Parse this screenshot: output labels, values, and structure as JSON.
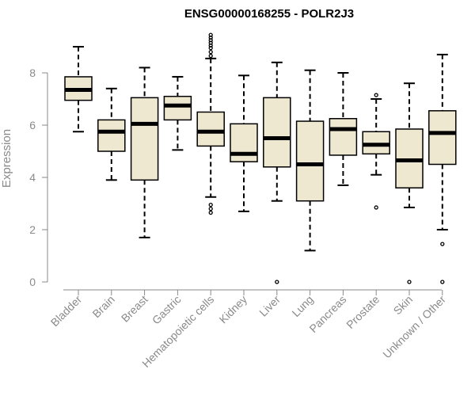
{
  "chart_data": {
    "type": "boxplot",
    "title": "ENSG00000168255 - POLR2J3",
    "xlabel": "",
    "ylabel": "Expression",
    "ylim": [
      0,
      9.5
    ],
    "yticks": [
      0,
      2,
      4,
      6,
      8
    ],
    "box_fill": "#efe8d0",
    "median_color": "#000000",
    "categories": [
      "Bladder",
      "Brain",
      "Breast",
      "Gastric",
      "Hematopoietic cells",
      "Kidney",
      "Liver",
      "Lung",
      "Pancreas",
      "Prostate",
      "Skin",
      "Unknown / Other"
    ],
    "boxes": [
      {
        "name": "Bladder",
        "min": 5.75,
        "q1": 6.95,
        "median": 7.35,
        "q3": 7.85,
        "max": 9.0,
        "outliers": []
      },
      {
        "name": "Brain",
        "min": 3.9,
        "q1": 5.0,
        "median": 5.75,
        "q3": 6.2,
        "max": 7.4,
        "outliers": []
      },
      {
        "name": "Breast",
        "min": 1.7,
        "q1": 3.9,
        "median": 6.05,
        "q3": 7.05,
        "max": 8.2,
        "outliers": []
      },
      {
        "name": "Gastric",
        "min": 5.05,
        "q1": 6.2,
        "median": 6.75,
        "q3": 7.1,
        "max": 7.85,
        "outliers": []
      },
      {
        "name": "Hematopoietic cells",
        "min": 3.25,
        "q1": 5.2,
        "median": 5.75,
        "q3": 6.5,
        "max": 8.55,
        "outliers": [
          8.65,
          8.8,
          8.95,
          9.05,
          9.15,
          9.25,
          9.35,
          9.45,
          2.95,
          2.8,
          2.65
        ]
      },
      {
        "name": "Kidney",
        "min": 2.7,
        "q1": 4.6,
        "median": 4.9,
        "q3": 6.05,
        "max": 7.9,
        "outliers": []
      },
      {
        "name": "Liver",
        "min": 3.1,
        "q1": 4.4,
        "median": 5.5,
        "q3": 7.05,
        "max": 8.4,
        "outliers": [
          0.0
        ]
      },
      {
        "name": "Lung",
        "min": 1.2,
        "q1": 3.1,
        "median": 4.5,
        "q3": 6.15,
        "max": 8.1,
        "outliers": []
      },
      {
        "name": "Pancreas",
        "min": 3.7,
        "q1": 4.85,
        "median": 5.85,
        "q3": 6.25,
        "max": 8.0,
        "outliers": []
      },
      {
        "name": "Prostate",
        "min": 4.1,
        "q1": 4.9,
        "median": 5.25,
        "q3": 5.75,
        "max": 7.0,
        "outliers": [
          7.15,
          2.85
        ]
      },
      {
        "name": "Skin",
        "min": 2.85,
        "q1": 3.6,
        "median": 4.65,
        "q3": 5.85,
        "max": 7.6,
        "outliers": [
          0.0
        ]
      },
      {
        "name": "Unknown / Other",
        "min": 2.0,
        "q1": 4.5,
        "median": 5.7,
        "q3": 6.55,
        "max": 8.7,
        "outliers": [
          1.45,
          0.0
        ]
      }
    ]
  }
}
